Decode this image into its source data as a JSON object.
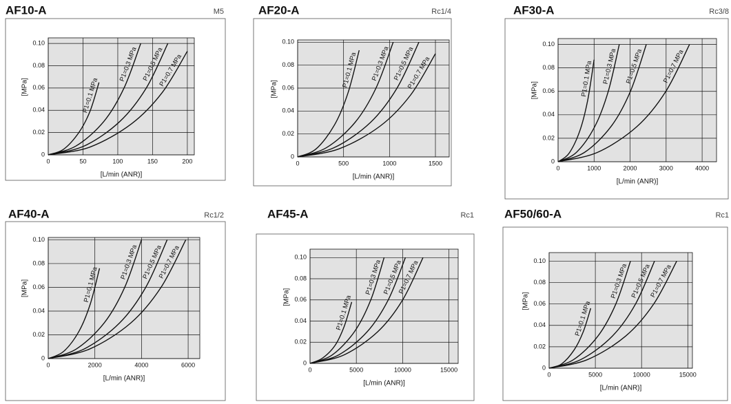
{
  "chart_data": [
    {
      "type": "line",
      "title": "AF10-A",
      "port": "M5",
      "xlabel": "[L/min (ANR)]",
      "ylabel": "[MPa]",
      "xlim": [
        0,
        210
      ],
      "ylim": [
        0,
        0.105
      ],
      "xticks": [
        0,
        50,
        100,
        150,
        200
      ],
      "yticks": [
        0,
        0.02,
        0.04,
        0.06,
        0.08,
        {
          "value": 0.1,
          "label": "0.10"
        }
      ],
      "grid": true,
      "series": [
        {
          "name": "P1=0.1 MPa",
          "color": "#111",
          "x": [
            0,
            22,
            44,
            60,
            73
          ],
          "values": [
            0,
            0.005,
            0.02,
            0.039,
            0.065
          ]
        },
        {
          "name": "P1=0.3 MPa",
          "color": "#111",
          "x": [
            0,
            40,
            80,
            109,
            133
          ],
          "values": [
            0,
            0.008,
            0.03,
            0.06,
            0.1
          ]
        },
        {
          "name": "P1=0.5 MPa",
          "color": "#111",
          "x": [
            0,
            52,
            103,
            141,
            172
          ],
          "values": [
            0,
            0.008,
            0.03,
            0.06,
            0.1
          ]
        },
        {
          "name": "P1=0.7 MPa",
          "color": "#111",
          "x": [
            0,
            60,
            120,
            164,
            200
          ],
          "values": [
            0,
            0.007,
            0.028,
            0.056,
            0.093
          ]
        }
      ]
    },
    {
      "type": "line",
      "title": "AF20-A",
      "port": "Rc1/4",
      "xlabel": "[L/min (ANR)]",
      "ylabel": "[MPa]",
      "xlim": [
        0,
        1650
      ],
      "ylim": [
        0,
        0.102
      ],
      "xticks": [
        0,
        500,
        1000,
        1500
      ],
      "yticks": [
        0,
        0.02,
        0.04,
        0.06,
        0.08,
        {
          "value": 0.1,
          "label": "0.10"
        }
      ],
      "grid": true,
      "series": [
        {
          "name": "P1=0.1 MPa",
          "color": "#111",
          "x": [
            0,
            201,
            402,
            549,
            670
          ],
          "values": [
            0,
            0.007,
            0.028,
            0.056,
            0.093
          ]
        },
        {
          "name": "P1=0.3 MPa",
          "color": "#111",
          "x": [
            0,
            312,
            624,
            853,
            1040
          ],
          "values": [
            0,
            0.008,
            0.03,
            0.06,
            0.1
          ]
        },
        {
          "name": "P1=0.5 MPa",
          "color": "#111",
          "x": [
            0,
            396,
            792,
            1082,
            1320
          ],
          "values": [
            0,
            0.008,
            0.03,
            0.06,
            0.1
          ]
        },
        {
          "name": "P1=0.7 MPa",
          "color": "#111",
          "x": [
            0,
            450,
            900,
            1230,
            1500
          ],
          "values": [
            0,
            0.007,
            0.027,
            0.054,
            0.09
          ]
        }
      ]
    },
    {
      "type": "line",
      "title": "AF30-A",
      "port": "Rc3/8",
      "xlabel": "[L/min (ANR)]",
      "ylabel": "[MPa]",
      "xlim": [
        0,
        4400
      ],
      "ylim": [
        0,
        0.105
      ],
      "xticks": [
        0,
        1000,
        2000,
        3000,
        4000
      ],
      "yticks": [
        0,
        0.02,
        0.04,
        0.06,
        0.08,
        {
          "value": 0.1,
          "label": "0.10"
        }
      ],
      "grid": true,
      "series": [
        {
          "name": "P1=0.1 MPa",
          "color": "#111",
          "x": [
            0,
            300,
            600,
            820,
            1000
          ],
          "values": [
            0,
            0.007,
            0.026,
            0.052,
            0.087
          ]
        },
        {
          "name": "P1=0.3 MPa",
          "color": "#111",
          "x": [
            0,
            510,
            1020,
            1394,
            1700
          ],
          "values": [
            0,
            0.008,
            0.03,
            0.06,
            0.1
          ]
        },
        {
          "name": "P1=0.5 MPa",
          "color": "#111",
          "x": [
            0,
            735,
            1470,
            2009,
            2450
          ],
          "values": [
            0,
            0.008,
            0.03,
            0.06,
            0.1
          ]
        },
        {
          "name": "P1=0.7 MPa",
          "color": "#111",
          "x": [
            0,
            1095,
            2190,
            2993,
            3650
          ],
          "values": [
            0,
            0.008,
            0.03,
            0.06,
            0.1
          ]
        }
      ]
    },
    {
      "type": "line",
      "title": "AF40-A",
      "port": "Rc1/2",
      "xlabel": "[L/min (ANR)]",
      "ylabel": "[MPa]",
      "xlim": [
        0,
        6500
      ],
      "ylim": [
        0,
        0.102
      ],
      "xticks": [
        0,
        2000,
        4000,
        6000
      ],
      "yticks": [
        0,
        0.02,
        0.04,
        0.06,
        0.08,
        {
          "value": 0.1,
          "label": "0.10"
        }
      ],
      "grid": true,
      "series": [
        {
          "name": "P1=0.1 MPa",
          "color": "#111",
          "x": [
            0,
            660,
            1320,
            1804,
            2200
          ],
          "values": [
            0,
            0.006,
            0.023,
            0.046,
            0.076
          ]
        },
        {
          "name": "P1=0.3 MPa",
          "color": "#111",
          "x": [
            0,
            1200,
            2400,
            3280,
            4000
          ],
          "values": [
            0,
            0.008,
            0.03,
            0.06,
            0.1
          ]
        },
        {
          "name": "P1=0.5 MPa",
          "color": "#111",
          "x": [
            0,
            1530,
            3060,
            4182,
            5100
          ],
          "values": [
            0,
            0.008,
            0.03,
            0.06,
            0.1
          ]
        },
        {
          "name": "P1=0.7 MPa",
          "color": "#111",
          "x": [
            0,
            1770,
            3540,
            4838,
            5900
          ],
          "values": [
            0,
            0.008,
            0.03,
            0.06,
            0.1
          ]
        }
      ]
    },
    {
      "type": "line",
      "title": "AF45-A",
      "port": "Rc1",
      "xlabel": "[L/min (ANR)]",
      "ylabel": "[MPa]",
      "xlim": [
        0,
        16000
      ],
      "ylim": [
        0,
        0.108
      ],
      "xticks": [
        0,
        5000,
        10000,
        15000
      ],
      "yticks": [
        0,
        0.02,
        0.04,
        0.06,
        0.08,
        {
          "value": 0.1,
          "label": "0.10"
        }
      ],
      "grid": true,
      "series": [
        {
          "name": "P1=0.1 MPa",
          "color": "#111",
          "x": [
            0,
            1350,
            2700,
            3690,
            4500
          ],
          "values": [
            0,
            0.005,
            0.017,
            0.035,
            0.058
          ]
        },
        {
          "name": "P1=0.3 MPa",
          "color": "#111",
          "x": [
            0,
            2400,
            4800,
            6560,
            8000
          ],
          "values": [
            0,
            0.008,
            0.03,
            0.06,
            0.1
          ]
        },
        {
          "name": "P1=0.5 MPa",
          "color": "#111",
          "x": [
            0,
            3090,
            6180,
            8446,
            10300
          ],
          "values": [
            0,
            0.008,
            0.03,
            0.06,
            0.1
          ]
        },
        {
          "name": "P1=0.7 MPa",
          "color": "#111",
          "x": [
            0,
            3660,
            7320,
            10004,
            12200
          ],
          "values": [
            0,
            0.008,
            0.03,
            0.06,
            0.1
          ]
        }
      ]
    },
    {
      "type": "line",
      "title": "AF50/60-A",
      "port": "Rc1",
      "xlabel": "[L/min (ANR)]",
      "ylabel": "[MPa]",
      "xlim": [
        0,
        15500
      ],
      "ylim": [
        0,
        0.108
      ],
      "xticks": [
        0,
        5000,
        10000,
        15000
      ],
      "yticks": [
        0,
        0.02,
        0.04,
        0.06,
        0.08,
        {
          "value": 0.1,
          "label": "0.10"
        }
      ],
      "grid": true,
      "series": [
        {
          "name": "P1=0.1 MPa",
          "color": "#111",
          "x": [
            0,
            1350,
            2700,
            3690,
            4500
          ],
          "values": [
            0,
            0.004,
            0.017,
            0.034,
            0.056
          ]
        },
        {
          "name": "P1=0.3 MPa",
          "color": "#111",
          "x": [
            0,
            2640,
            5280,
            7216,
            8800
          ],
          "values": [
            0,
            0.008,
            0.03,
            0.06,
            0.1
          ]
        },
        {
          "name": "P1=0.5 MPa",
          "color": "#111",
          "x": [
            0,
            3420,
            6840,
            9348,
            11400
          ],
          "values": [
            0,
            0.008,
            0.03,
            0.06,
            0.1
          ]
        },
        {
          "name": "P1=0.7 MPa",
          "color": "#111",
          "x": [
            0,
            4140,
            8280,
            11316,
            13800
          ],
          "values": [
            0,
            0.008,
            0.03,
            0.06,
            0.1
          ]
        }
      ]
    }
  ]
}
